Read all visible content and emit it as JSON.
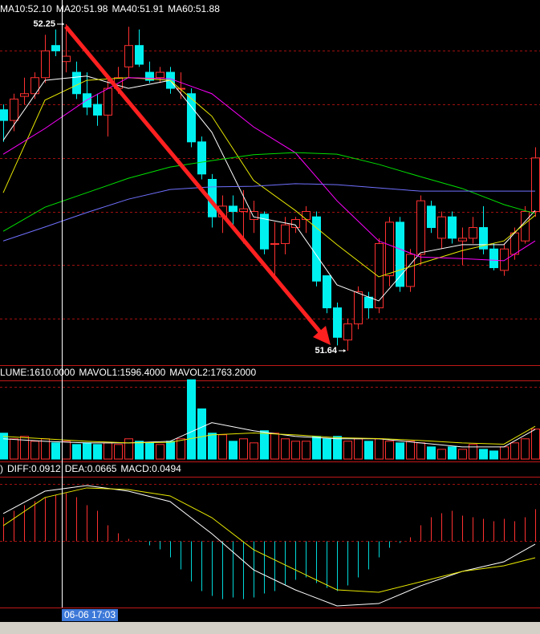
{
  "chart_data": [
    {
      "type": "candlestick",
      "open": [
        52.09,
        52.07,
        52.115,
        52.12,
        52.15,
        52.21,
        52.18,
        52.16,
        52.12,
        52.1,
        52.08,
        52.13,
        52.17,
        52.21,
        52.16,
        52.15,
        52.16,
        52.13,
        52.12,
        52.03,
        51.96,
        51.89,
        51.91,
        51.9,
        51.885,
        51.895,
        51.84,
        51.84,
        51.87,
        51.885,
        51.89,
        51.78,
        51.72,
        51.66,
        51.69,
        51.74,
        51.72,
        51.78,
        51.88,
        51.76,
        51.82,
        51.91,
        51.85,
        51.89,
        51.845,
        51.85,
        51.87,
        51.83,
        51.79,
        51.82,
        51.845,
        51.9
      ],
      "high": [
        52.1,
        52.12,
        52.15,
        52.16,
        52.23,
        52.24,
        52.25,
        52.18,
        52.16,
        52.12,
        52.15,
        52.17,
        52.245,
        52.24,
        52.18,
        52.17,
        52.17,
        52.16,
        52.13,
        52.04,
        51.97,
        51.93,
        51.93,
        51.94,
        51.92,
        51.9,
        51.88,
        51.89,
        51.89,
        51.91,
        51.9,
        51.78,
        51.73,
        51.7,
        51.76,
        51.75,
        51.85,
        51.89,
        51.89,
        51.83,
        51.93,
        51.92,
        51.9,
        51.9,
        51.87,
        51.89,
        51.91,
        51.84,
        51.84,
        51.87,
        51.91,
        52.02
      ],
      "low": [
        52.03,
        52.05,
        52.1,
        52.11,
        52.14,
        52.19,
        52.16,
        52.11,
        52.08,
        52.06,
        52.04,
        52.12,
        52.15,
        52.17,
        52.14,
        52.14,
        52.12,
        52.11,
        52.02,
        51.96,
        51.87,
        51.86,
        51.87,
        51.84,
        51.86,
        51.82,
        51.78,
        51.82,
        51.86,
        51.86,
        51.76,
        51.71,
        51.65,
        51.64,
        51.68,
        51.7,
        51.71,
        51.76,
        51.75,
        51.75,
        51.8,
        51.86,
        51.83,
        51.84,
        51.8,
        51.84,
        51.82,
        51.79,
        51.78,
        51.81,
        51.84,
        51.89
      ],
      "close": [
        52.07,
        52.11,
        52.12,
        52.15,
        52.2,
        52.2,
        52.19,
        52.12,
        52.095,
        52.08,
        52.13,
        52.15,
        52.21,
        52.175,
        52.145,
        52.16,
        52.13,
        52.13,
        52.03,
        51.97,
        51.89,
        51.91,
        51.9,
        51.905,
        51.9,
        51.83,
        51.84,
        51.875,
        51.885,
        51.9,
        51.77,
        51.72,
        51.665,
        51.69,
        51.75,
        51.72,
        51.84,
        51.88,
        51.76,
        51.82,
        51.92,
        51.87,
        51.89,
        51.85,
        51.85,
        51.87,
        51.83,
        51.795,
        51.83,
        51.86,
        51.9,
        52.0
      ],
      "up_color": "#ff3030",
      "down_color": "#00f0f0",
      "ylim": [
        51.613,
        52.295
      ],
      "yticks": [
        51.7,
        51.8,
        51.9,
        52.0,
        52.1,
        52.2
      ],
      "grid": true,
      "grid_color": "#a01010",
      "series": [
        {
          "color": "#ffffff",
          "x": [
            0,
            4,
            8,
            12,
            16,
            20,
            24,
            28,
            32,
            36,
            40,
            44,
            48,
            51
          ],
          "values": [
            52.033,
            52.145,
            52.153,
            52.13,
            52.145,
            52.048,
            51.89,
            51.875,
            51.763,
            51.733,
            51.823,
            51.838,
            51.838,
            51.902
          ]
        },
        {
          "name": "MA10:52.10",
          "color": "#e8e800",
          "x": [
            0,
            4,
            8,
            12,
            16,
            20,
            24,
            28,
            32,
            36,
            40,
            44,
            48,
            51
          ],
          "values": [
            51.935,
            52.108,
            52.145,
            52.15,
            52.145,
            52.078,
            51.958,
            51.902,
            51.838,
            51.778,
            51.803,
            51.827,
            51.845,
            51.893
          ]
        },
        {
          "name": "MA20:51.98",
          "color": "#ff00ff",
          "x": [
            0,
            4,
            8,
            12,
            16,
            20,
            24,
            28,
            32,
            36,
            40,
            44,
            48,
            51
          ],
          "values": [
            52.007,
            52.055,
            52.108,
            52.15,
            52.148,
            52.12,
            52.058,
            52.01,
            51.92,
            51.845,
            51.815,
            51.812,
            51.808,
            51.845
          ]
        },
        {
          "name": "MA40:51.91",
          "color": "#00e000",
          "x": [
            0,
            4,
            8,
            12,
            16,
            20,
            24,
            28,
            32,
            36,
            40,
            44,
            48,
            51
          ],
          "values": [
            51.863,
            51.908,
            51.935,
            51.962,
            51.983,
            51.995,
            52.006,
            52.01,
            52.007,
            51.988,
            51.965,
            51.943,
            51.913,
            51.896
          ]
        },
        {
          "name": "MA60:51.88",
          "color": "#7070ff",
          "x": [
            0,
            4,
            8,
            12,
            16,
            20,
            24,
            28,
            32,
            36,
            40,
            44,
            48,
            51
          ],
          "values": [
            51.845,
            51.871,
            51.898,
            51.923,
            51.941,
            51.946,
            51.947,
            51.952,
            51.95,
            51.944,
            51.938,
            51.938,
            51.938,
            51.938
          ]
        }
      ],
      "annotations": [
        {
          "text": "52.25",
          "x": 6,
          "value": 52.25
        },
        {
          "text": "51.64",
          "x": 33,
          "value": 51.64
        }
      ]
    },
    {
      "type": "bar",
      "title": "LUME:1610.0000",
      "title_color": "#ffffff",
      "values": [
        1392,
        1088,
        1218,
        957,
        1088,
        870,
        957,
        783,
        870,
        783,
        870,
        783,
        1088,
        957,
        870,
        783,
        957,
        1088,
        4263,
        2697,
        1392,
        1305,
        957,
        1088,
        870,
        1523,
        1392,
        1088,
        957,
        957,
        1218,
        1088,
        1218,
        957,
        1088,
        957,
        1088,
        957,
        870,
        957,
        870,
        653,
        522,
        653,
        522,
        783,
        522,
        435,
        653,
        870,
        1088,
        1610
      ],
      "colors": [
        "#00f0f0",
        "#ff3030",
        "#ff3030",
        "#ff3030",
        "#ff3030",
        "#00f0f0",
        "#ff3030",
        "#00f0f0",
        "#00f0f0",
        "#00f0f0",
        "#ff3030",
        "#ff3030",
        "#ff3030",
        "#00f0f0",
        "#00f0f0",
        "#ff3030",
        "#00f0f0",
        "#ff3030",
        "#00f0f0",
        "#00f0f0",
        "#00f0f0",
        "#ff3030",
        "#00f0f0",
        "#ff3030",
        "#ff3030",
        "#00f0f0",
        "#ff3030",
        "#ff3030",
        "#ff3030",
        "#ff3030",
        "#00f0f0",
        "#00f0f0",
        "#00f0f0",
        "#ff3030",
        "#ff3030",
        "#00f0f0",
        "#ff3030",
        "#ff3030",
        "#00f0f0",
        "#ff3030",
        "#ff3030",
        "#00f0f0",
        "#ff3030",
        "#00f0f0",
        "#ff3030",
        "#ff3030",
        "#00f0f0",
        "#00f0f0",
        "#ff3030",
        "#ff3030",
        "#ff3030",
        "#ff3030"
      ],
      "up_color": "#ff3030",
      "ylim": [
        0,
        4400
      ],
      "series": [
        {
          "name": "MAVOL1:1596.4000",
          "color": "#ffffff",
          "x": [
            0,
            4,
            8,
            12,
            16,
            20,
            24,
            28,
            32,
            36,
            40,
            44,
            48,
            51
          ],
          "values": [
            1088,
            957,
            870,
            870,
            957,
            1958,
            1523,
            1218,
            1088,
            1088,
            870,
            653,
            653,
            1596
          ]
        },
        {
          "name": "MAVOL2:1763.2000",
          "color": "#e8e800",
          "x": [
            0,
            4,
            8,
            12,
            16,
            20,
            24,
            28,
            32,
            36,
            40,
            44,
            48,
            51
          ],
          "values": [
            1218,
            1088,
            957,
            870,
            900,
            1300,
            1400,
            1300,
            1150,
            1100,
            1000,
            870,
            800,
            1763
          ]
        }
      ]
    },
    {
      "type": "macd",
      "title": ")",
      "title_color": "#ffffff",
      "name": "MACD:0.0494",
      "name_color": "#c0c0c0",
      "values": [
        0.273,
        0.345,
        0.409,
        0.455,
        0.5,
        0.527,
        0.545,
        0.5,
        0.409,
        0.345,
        0.182,
        0.091,
        0.027,
        0.009,
        -0.045,
        -0.091,
        -0.182,
        -0.318,
        -0.455,
        -0.564,
        -0.618,
        -0.655,
        -0.636,
        -0.655,
        -0.636,
        -0.591,
        -0.564,
        -0.5,
        -0.436,
        -0.409,
        -0.473,
        -0.527,
        -0.564,
        -0.5,
        -0.409,
        -0.318,
        -0.182,
        -0.073,
        -0.018,
        0.045,
        0.182,
        0.273,
        0.318,
        0.345,
        0.291,
        0.273,
        0.255,
        0.227,
        0.255,
        0.227,
        0.273,
        0.364
      ],
      "pos_color": "#ff3030",
      "neg_color": "#00d8d8",
      "ylim": [
        -0.75,
        0.75
      ],
      "series": [
        {
          "name": "DIFF:0.0912",
          "color": "#ffffff",
          "x": [
            0,
            4,
            8,
            12,
            16,
            20,
            24,
            28,
            32,
            36,
            40,
            44,
            48,
            51
          ],
          "values": [
            0.314,
            0.568,
            0.632,
            0.568,
            0.45,
            0.086,
            -0.323,
            -0.55,
            -0.732,
            -0.705,
            -0.505,
            -0.341,
            -0.232,
            -0.032
          ]
        },
        {
          "name": "DEA:0.0665",
          "color": "#e8e800",
          "x": [
            0,
            4,
            8,
            12,
            16,
            20,
            24,
            28,
            32,
            36,
            40,
            44,
            48,
            51
          ],
          "values": [
            0.177,
            0.496,
            0.605,
            0.586,
            0.514,
            0.268,
            -0.095,
            -0.323,
            -0.55,
            -0.577,
            -0.459,
            -0.341,
            -0.277,
            -0.186
          ]
        }
      ]
    }
  ],
  "cursor_label": "06-06 17:03"
}
